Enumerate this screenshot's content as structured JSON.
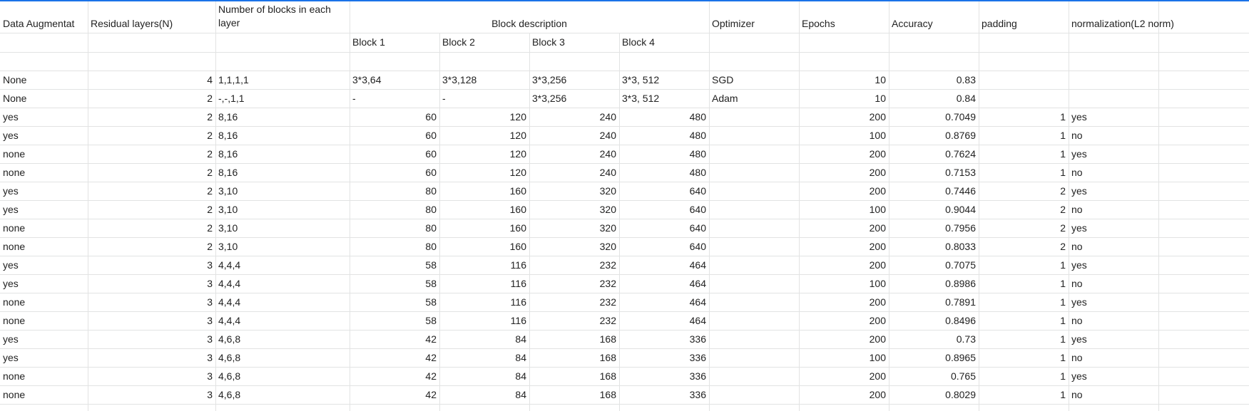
{
  "sheet": {
    "header": {
      "data_augmentation": "Data Augmentat",
      "residual_layers": "Residual layers(N)",
      "blocks_in_layer": "Number of blocks in each layer",
      "block_description": "Block description",
      "optimizer": "Optimizer",
      "epochs": "Epochs",
      "accuracy": "Accuracy",
      "padding": "padding",
      "normalization": "normalization(L2 norm)",
      "block1": "Block 1",
      "block2": "Block 2",
      "block3": "Block 3",
      "block4": "Block 4"
    },
    "rows": [
      {
        "aug": "None",
        "n": "4",
        "blocks": "1,1,1,1",
        "b1": "3*3,64",
        "b2": "3*3,128",
        "b3": "3*3,256",
        "b4": "3*3, 512",
        "opt": "SGD",
        "epochs": "10",
        "acc": "0.83",
        "pad": "",
        "norm": ""
      },
      {
        "aug": "None",
        "n": "2",
        "blocks": "-,-,1,1",
        "b1": "-",
        "b2": "-",
        "b3": "3*3,256",
        "b4": "3*3, 512",
        "opt": "Adam",
        "epochs": "10",
        "acc": "0.84",
        "pad": "",
        "norm": ""
      },
      {
        "aug": "yes",
        "n": "2",
        "blocks": "8,16",
        "b1": "60",
        "b2": "120",
        "b3": "240",
        "b4": "480",
        "opt": "",
        "epochs": "200",
        "acc": "0.7049",
        "pad": "1",
        "norm": "yes"
      },
      {
        "aug": "yes",
        "n": "2",
        "blocks": "8,16",
        "b1": "60",
        "b2": "120",
        "b3": "240",
        "b4": "480",
        "opt": "",
        "epochs": "100",
        "acc": "0.8769",
        "pad": "1",
        "norm": "no"
      },
      {
        "aug": "none",
        "n": "2",
        "blocks": "8,16",
        "b1": "60",
        "b2": "120",
        "b3": "240",
        "b4": "480",
        "opt": "",
        "epochs": "200",
        "acc": "0.7624",
        "pad": "1",
        "norm": "yes"
      },
      {
        "aug": "none",
        "n": "2",
        "blocks": "8,16",
        "b1": "60",
        "b2": "120",
        "b3": "240",
        "b4": "480",
        "opt": "",
        "epochs": "200",
        "acc": "0.7153",
        "pad": "1",
        "norm": "no"
      },
      {
        "aug": "yes",
        "n": "2",
        "blocks": "3,10",
        "b1": "80",
        "b2": "160",
        "b3": "320",
        "b4": "640",
        "opt": "",
        "epochs": "200",
        "acc": "0.7446",
        "pad": "2",
        "norm": "yes"
      },
      {
        "aug": "yes",
        "n": "2",
        "blocks": "3,10",
        "b1": "80",
        "b2": "160",
        "b3": "320",
        "b4": "640",
        "opt": "",
        "epochs": "100",
        "acc": "0.9044",
        "pad": "2",
        "norm": "no"
      },
      {
        "aug": "none",
        "n": "2",
        "blocks": "3,10",
        "b1": "80",
        "b2": "160",
        "b3": "320",
        "b4": "640",
        "opt": "",
        "epochs": "200",
        "acc": "0.7956",
        "pad": "2",
        "norm": "yes"
      },
      {
        "aug": "none",
        "n": "2",
        "blocks": "3,10",
        "b1": "80",
        "b2": "160",
        "b3": "320",
        "b4": "640",
        "opt": "",
        "epochs": "200",
        "acc": "0.8033",
        "pad": "2",
        "norm": "no"
      },
      {
        "aug": "yes",
        "n": "3",
        "blocks": "4,4,4",
        "b1": "58",
        "b2": "116",
        "b3": "232",
        "b4": "464",
        "opt": "",
        "epochs": "200",
        "acc": "0.7075",
        "pad": "1",
        "norm": "yes"
      },
      {
        "aug": "yes",
        "n": "3",
        "blocks": "4,4,4",
        "b1": "58",
        "b2": "116",
        "b3": "232",
        "b4": "464",
        "opt": "",
        "epochs": "100",
        "acc": "0.8986",
        "pad": "1",
        "norm": "no"
      },
      {
        "aug": "none",
        "n": "3",
        "blocks": "4,4,4",
        "b1": "58",
        "b2": "116",
        "b3": "232",
        "b4": "464",
        "opt": "",
        "epochs": "200",
        "acc": "0.7891",
        "pad": "1",
        "norm": "yes"
      },
      {
        "aug": "none",
        "n": "3",
        "blocks": "4,4,4",
        "b1": "58",
        "b2": "116",
        "b3": "232",
        "b4": "464",
        "opt": "",
        "epochs": "200",
        "acc": "0.8496",
        "pad": "1",
        "norm": "no"
      },
      {
        "aug": "yes",
        "n": "3",
        "blocks": "4,6,8",
        "b1": "42",
        "b2": "84",
        "b3": "168",
        "b4": "336",
        "opt": "",
        "epochs": "200",
        "acc": "0.73",
        "pad": "1",
        "norm": "yes"
      },
      {
        "aug": "yes",
        "n": "3",
        "blocks": "4,6,8",
        "b1": "42",
        "b2": "84",
        "b3": "168",
        "b4": "336",
        "opt": "",
        "epochs": "100",
        "acc": "0.8965",
        "pad": "1",
        "norm": "no"
      },
      {
        "aug": "none",
        "n": "3",
        "blocks": "4,6,8",
        "b1": "42",
        "b2": "84",
        "b3": "168",
        "b4": "336",
        "opt": "",
        "epochs": "200",
        "acc": "0.765",
        "pad": "1",
        "norm": "yes"
      },
      {
        "aug": "none",
        "n": "3",
        "blocks": "4,6,8",
        "b1": "42",
        "b2": "84",
        "b3": "168",
        "b4": "336",
        "opt": "",
        "epochs": "200",
        "acc": "0.8029",
        "pad": "1",
        "norm": "no"
      }
    ]
  }
}
